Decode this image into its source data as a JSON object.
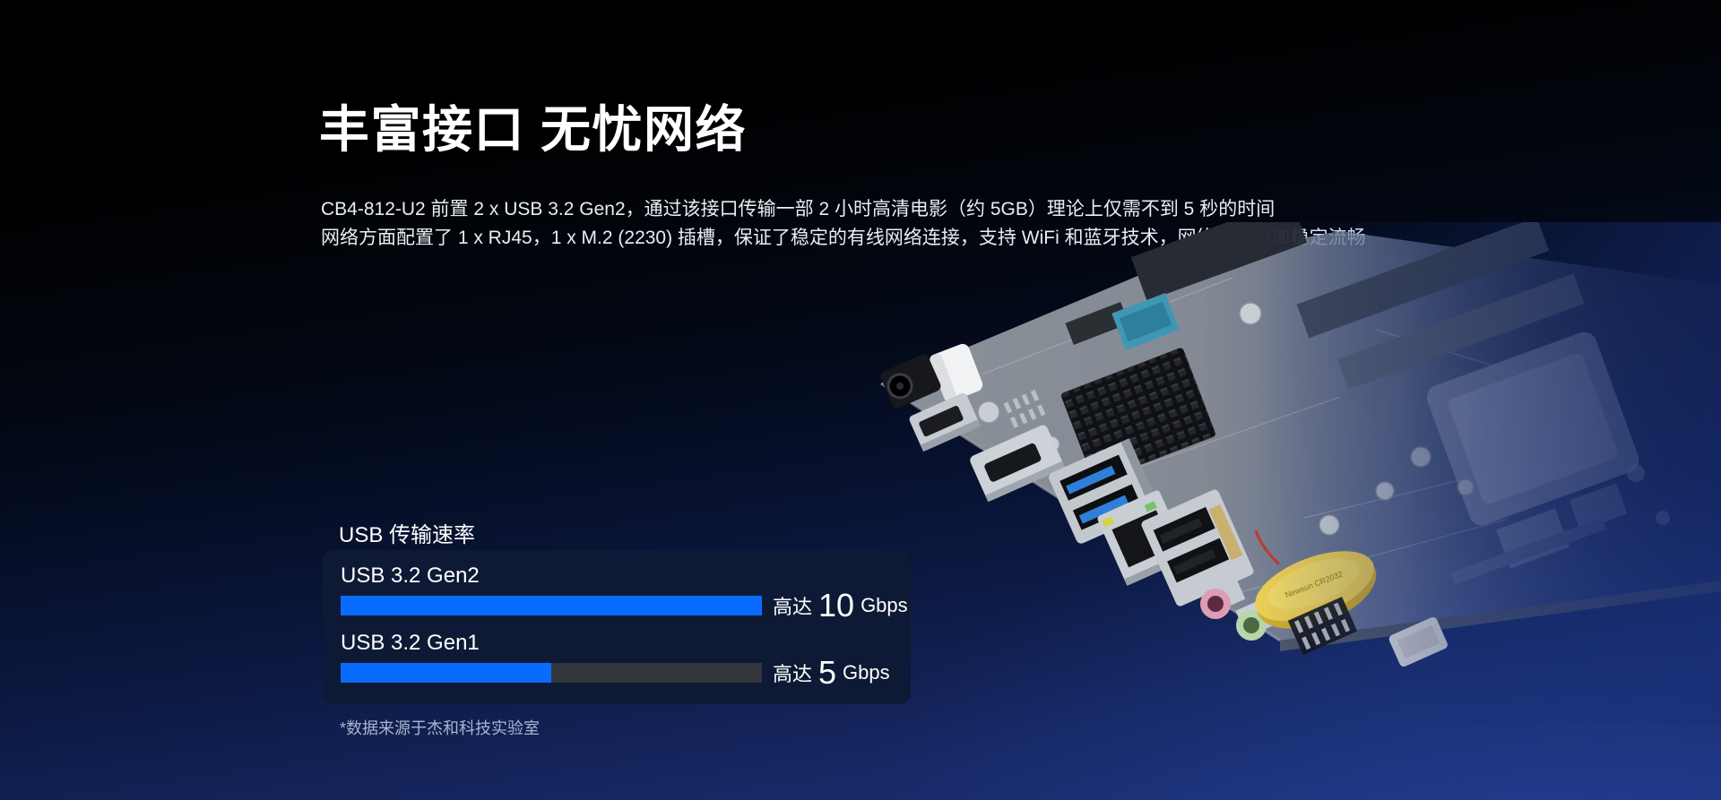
{
  "background": {
    "top_color": "#000000",
    "bottom_color": "#1e3078",
    "accent_blue": "#0a6cff"
  },
  "hero": {
    "title": "丰富接口 无忧网络",
    "description_lines": [
      "CB4-812-U2 前置 2 x USB 3.2 Gen2，通过该接口传输一部 2 小时高清电影（约 5GB）理论上仅需不到 5 秒的时间",
      "网络方面配置了 1 x RJ45，1 x M.2 (2230) 插槽，保证了稳定的有线网络连接，支持 WiFi 和蓝牙技术，网络连接更加稳定流畅"
    ],
    "footnote": "*数据来源于杰和科技实验室"
  },
  "chart_data": {
    "type": "bar",
    "orientation": "horizontal",
    "title": "USB 传输速率",
    "categories": [
      "USB 3.2 Gen2",
      "USB 3.2 Gen1"
    ],
    "values": [
      10,
      5
    ],
    "value_prefix": "高达",
    "unit": "Gbps",
    "xlim": [
      0,
      10
    ],
    "grid": false,
    "legend": "none",
    "colors": {
      "bar": "#0a6cff",
      "track": "#32353a",
      "panel": "#0e1a35"
    }
  },
  "motherboard": {
    "battery_text": "Newsun CR2032"
  }
}
